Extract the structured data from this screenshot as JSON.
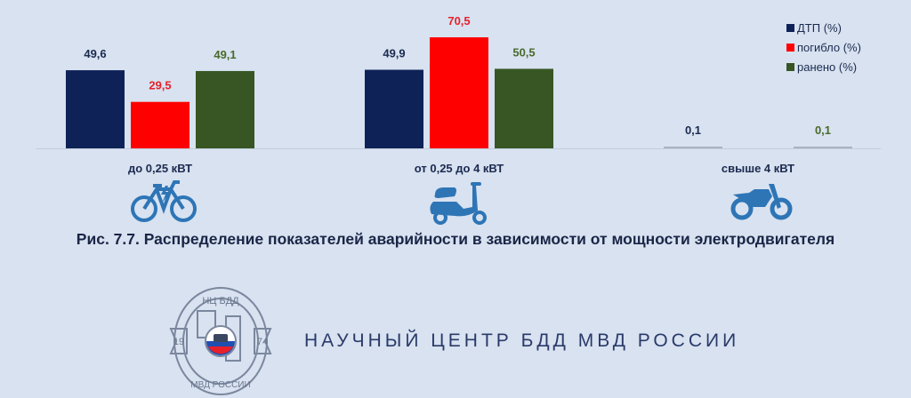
{
  "chart_data": {
    "type": "bar",
    "title": "Рис. 7.7. Распределение показателей аварийности в зависимости от мощности электродвигателя",
    "categories": [
      "до 0,25 кВТ",
      "от 0,25 до 4 кВТ",
      "свыше 4 кВТ"
    ],
    "series": [
      {
        "name": "ДТП (%)",
        "color": "#0f2258",
        "values": [
          49.6,
          49.9,
          0.1
        ],
        "labels": [
          "49,6",
          "49,9",
          "0,1"
        ]
      },
      {
        "name": "погибло (%)",
        "color": "#ff0000",
        "values": [
          29.5,
          70.5,
          0
        ],
        "labels": [
          "29,5",
          "70,5",
          ""
        ]
      },
      {
        "name": "ранено (%)",
        "color": "#375623",
        "values": [
          49.1,
          50.5,
          0.1
        ],
        "labels": [
          "49,1",
          "50,5",
          "0,1"
        ]
      }
    ],
    "label_colors": [
      "#1c2a50",
      "#e8202a",
      "#4a6a2a"
    ],
    "ylim": [
      0,
      80
    ],
    "grid": false,
    "legend": "top-right",
    "category_icons": [
      "electric-bicycle-icon",
      "scooter-icon",
      "motorcycle-icon"
    ],
    "icon_color": "#2e75b6"
  },
  "footer": {
    "org_name": "НАУЧНЫЙ ЦЕНТР БДД МВД РОССИИ",
    "logo_text": [
      "НЦ БДД",
      "19",
      "74",
      "МВД РОССИИ"
    ]
  }
}
